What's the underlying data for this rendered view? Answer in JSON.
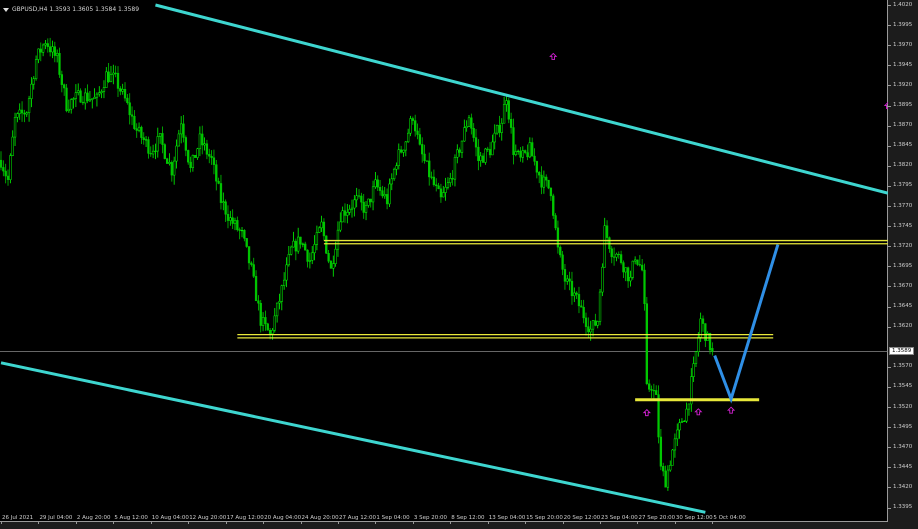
{
  "window": {
    "symbol_line": "GBPUSD,H4  1.3593 1.3605 1.3584 1.3589",
    "current_price": "1.3589"
  },
  "chart_data": {
    "type": "candlestick",
    "symbol": "GBPUSD",
    "timeframe": "H4",
    "ohlc_last": {
      "open": 1.3593,
      "high": 1.3605,
      "low": 1.3584,
      "close": 1.3589
    },
    "ylim": [
      1.3395,
      1.402
    ],
    "y_ticks": [
      "1.4020",
      "1.3995",
      "1.3970",
      "1.3945",
      "1.3920",
      "1.3895",
      "1.3870",
      "1.3845",
      "1.3820",
      "1.3795",
      "1.3770",
      "1.3745",
      "1.3720",
      "1.3695",
      "1.3670",
      "1.3645",
      "1.3620",
      "1.3570",
      "1.3545",
      "1.3520",
      "1.3495",
      "1.3470",
      "1.3445",
      "1.3420",
      "1.3395"
    ],
    "x_ticks": [
      "26 Jul 2021",
      "29 Jul 04:00",
      "2 Aug 20:00",
      "5 Aug 12:00",
      "10 Aug 04:00",
      "12 Aug 20:00",
      "17 Aug 12:00",
      "20 Aug 04:00",
      "24 Aug 20:00",
      "27 Aug 12:00",
      "1 Sep 04:00",
      "3 Sep 20:00",
      "8 Sep 12:00",
      "13 Sep 04:00",
      "15 Sep 20:00",
      "20 Sep 12:00",
      "23 Sep 04:00",
      "27 Sep 20:00",
      "30 Sep 12:00",
      "5 Oct 04:00"
    ],
    "bars_per_tick": 16,
    "price_path": [
      [
        0,
        1.3827
      ],
      [
        3,
        1.3802
      ],
      [
        6,
        1.3877
      ],
      [
        11,
        1.3889
      ],
      [
        15,
        1.3952
      ],
      [
        19,
        1.3976
      ],
      [
        24,
        1.3952
      ],
      [
        28,
        1.3896
      ],
      [
        34,
        1.3908
      ],
      [
        41,
        1.3902
      ],
      [
        45,
        1.3933
      ],
      [
        49,
        1.3927
      ],
      [
        53,
        1.3902
      ],
      [
        58,
        1.3864
      ],
      [
        64,
        1.384
      ],
      [
        68,
        1.3852
      ],
      [
        73,
        1.3815
      ],
      [
        77,
        1.3877
      ],
      [
        81,
        1.3815
      ],
      [
        85,
        1.3852
      ],
      [
        90,
        1.3827
      ],
      [
        94,
        1.3777
      ],
      [
        98,
        1.3753
      ],
      [
        103,
        1.3734
      ],
      [
        107,
        1.369
      ],
      [
        111,
        1.3628
      ],
      [
        115,
        1.3609
      ],
      [
        119,
        1.3653
      ],
      [
        124,
        1.3715
      ],
      [
        128,
        1.3728
      ],
      [
        132,
        1.3703
      ],
      [
        137,
        1.3746
      ],
      [
        141,
        1.369
      ],
      [
        145,
        1.3759
      ],
      [
        152,
        1.3777
      ],
      [
        156,
        1.3765
      ],
      [
        160,
        1.3796
      ],
      [
        165,
        1.3777
      ],
      [
        169,
        1.3827
      ],
      [
        173,
        1.3852
      ],
      [
        176,
        1.3883
      ],
      [
        179,
        1.384
      ],
      [
        184,
        1.3802
      ],
      [
        188,
        1.3777
      ],
      [
        192,
        1.3802
      ],
      [
        197,
        1.3852
      ],
      [
        200,
        1.3883
      ],
      [
        204,
        1.3827
      ],
      [
        209,
        1.384
      ],
      [
        214,
        1.3877
      ],
      [
        216,
        1.3908
      ],
      [
        219,
        1.384
      ],
      [
        222,
        1.3827
      ],
      [
        226,
        1.384
      ],
      [
        231,
        1.3802
      ],
      [
        235,
        1.379
      ],
      [
        238,
        1.3715
      ],
      [
        241,
        1.3678
      ],
      [
        246,
        1.3653
      ],
      [
        252,
        1.3616
      ],
      [
        255,
        1.3628
      ],
      [
        258,
        1.374
      ],
      [
        261,
        1.3715
      ],
      [
        265,
        1.3703
      ],
      [
        269,
        1.3678
      ],
      [
        271,
        1.3709
      ],
      [
        274,
        1.369
      ],
      [
        275,
        1.3641
      ],
      [
        276,
        1.3541
      ],
      [
        278,
        1.3547
      ],
      [
        280,
        1.3529
      ],
      [
        282,
        1.3442
      ],
      [
        284,
        1.3429
      ],
      [
        287,
        1.3466
      ],
      [
        291,
        1.3504
      ],
      [
        293,
        1.3516
      ],
      [
        296,
        1.3566
      ],
      [
        299,
        1.3628
      ],
      [
        302,
        1.3603
      ],
      [
        304,
        1.3589
      ]
    ],
    "trendlines": [
      {
        "kind": "channel-upper",
        "color": "#3ed6d0",
        "points": [
          [
            66,
            1.402
          ],
          [
            379,
            1.3786
          ]
        ]
      },
      {
        "kind": "channel-lower",
        "color": "#3ed6d0",
        "points": [
          [
            0,
            1.3575
          ],
          [
            301,
            1.3389
          ]
        ]
      }
    ],
    "levels": [
      {
        "price": 1.3725,
        "from": 138,
        "to": 379,
        "color": "#e8e83a",
        "double": true
      },
      {
        "price": 1.3608,
        "from": 101,
        "to": 330,
        "color": "#e8e83a",
        "double": true
      },
      {
        "price": 1.3529,
        "from": 271,
        "to": 324,
        "color": "#e8e83a",
        "double": false
      }
    ],
    "projection": {
      "color": "#2f8fe6",
      "points": [
        [
          305,
          1.3584
        ],
        [
          312,
          1.353
        ],
        [
          332,
          1.3722
        ]
      ]
    },
    "arrows": [
      [
        236,
        1.3956
      ],
      [
        276,
        1.3513
      ],
      [
        298,
        1.3514
      ],
      [
        312,
        1.3516
      ],
      [
        379,
        1.3895
      ]
    ],
    "colors": {
      "bull": "#00ff00",
      "bear": "#00c800",
      "background": "#000000",
      "grid_line": "#9a9a9a",
      "arrow": "#d020d0"
    }
  }
}
